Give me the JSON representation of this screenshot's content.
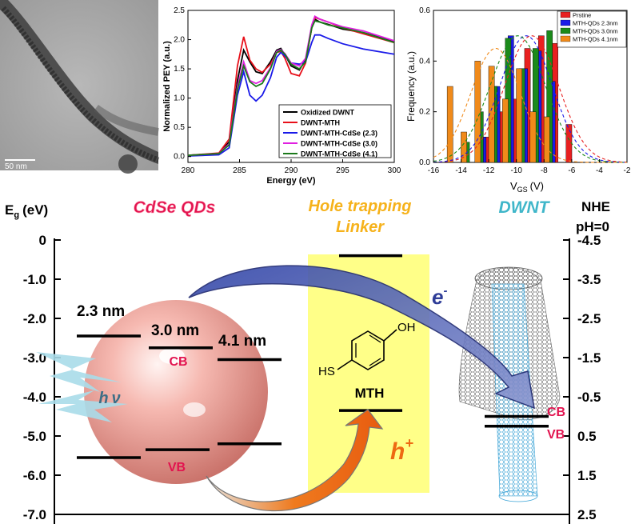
{
  "tem": {
    "scale_label": "50 nm"
  },
  "chart_data": [
    {
      "id": "pey",
      "type": "line",
      "title": "",
      "xlabel": "Energy (eV)",
      "ylabel": "Normalized PEY (a.u.)",
      "xlim": [
        280,
        300
      ],
      "ylim": [
        -0.1,
        2.5
      ],
      "x_ticks": [
        280,
        285,
        290,
        295,
        300
      ],
      "y_ticks": [
        0.0,
        0.5,
        1.0,
        1.5,
        2.0,
        2.5
      ],
      "x_tick_labels": [
        "280",
        "285",
        "290",
        "295",
        "300"
      ],
      "y_tick_labels": [
        "0.0",
        "0.5",
        "1.0",
        "1.5",
        "2.0",
        "2.5"
      ],
      "legend_position": "bottom-right",
      "series": [
        {
          "name": "Oxidized DWNT",
          "color": "#000000",
          "x": [
            280,
            283,
            284,
            284.8,
            285.4,
            286,
            286.6,
            287.2,
            288,
            288.6,
            289,
            289.4,
            290,
            290.8,
            291.4,
            292,
            292.3,
            292.8,
            293.6,
            295,
            297,
            300
          ],
          "y": [
            0.02,
            0.05,
            0.25,
            1.3,
            1.82,
            1.62,
            1.45,
            1.42,
            1.62,
            1.82,
            1.85,
            1.74,
            1.55,
            1.48,
            1.65,
            2.2,
            2.35,
            2.3,
            2.26,
            2.18,
            2.12,
            1.97
          ]
        },
        {
          "name": "DWNT-MTH",
          "color": "#e8101a",
          "x": [
            280,
            283,
            284,
            284.8,
            285.4,
            286,
            286.6,
            287.2,
            288,
            288.6,
            289,
            289.4,
            290,
            290.8,
            291.4,
            292,
            292.3,
            292.8,
            293.6,
            295,
            297,
            300
          ],
          "y": [
            0.02,
            0.06,
            0.3,
            1.55,
            2.05,
            1.65,
            1.5,
            1.44,
            1.58,
            1.78,
            1.8,
            1.68,
            1.42,
            1.38,
            1.6,
            2.2,
            2.38,
            2.35,
            2.3,
            2.2,
            2.1,
            1.95
          ]
        },
        {
          "name": "DWNT-MTH-CdSe (2.3)",
          "color": "#1a1ae8",
          "x": [
            280,
            283,
            284,
            284.8,
            285.4,
            286,
            286.6,
            287.2,
            288,
            288.6,
            289,
            289.4,
            290,
            290.8,
            291.4,
            292,
            292.3,
            292.8,
            293.6,
            295,
            297,
            300
          ],
          "y": [
            0.01,
            0.03,
            0.15,
            1.05,
            1.45,
            1.05,
            0.95,
            1.05,
            1.35,
            1.7,
            1.78,
            1.72,
            1.6,
            1.58,
            1.62,
            1.95,
            2.08,
            2.08,
            2.02,
            1.93,
            1.84,
            1.75
          ]
        },
        {
          "name": "DWNT-MTH-CdSe (3.0)",
          "color": "#e020e0",
          "x": [
            280,
            283,
            284,
            284.8,
            285.4,
            286,
            286.6,
            287.2,
            288,
            288.6,
            289,
            289.4,
            290,
            290.8,
            291.4,
            292,
            292.3,
            292.8,
            293.6,
            295,
            297,
            300
          ],
          "y": [
            0.02,
            0.05,
            0.22,
            1.2,
            1.62,
            1.3,
            1.25,
            1.3,
            1.52,
            1.8,
            1.83,
            1.76,
            1.6,
            1.55,
            1.68,
            2.25,
            2.4,
            2.35,
            2.3,
            2.22,
            2.15,
            1.98
          ]
        },
        {
          "name": "DWNT-MTH-CdSe (4.1)",
          "color": "#1b7a1b",
          "x": [
            280,
            283,
            284,
            284.8,
            285.4,
            286,
            286.6,
            287.2,
            288,
            288.6,
            289,
            289.4,
            290,
            290.8,
            291.4,
            292,
            292.3,
            292.8,
            293.6,
            295,
            297,
            300
          ],
          "y": [
            0.02,
            0.05,
            0.2,
            1.15,
            1.55,
            1.28,
            1.2,
            1.25,
            1.5,
            1.78,
            1.82,
            1.75,
            1.58,
            1.5,
            1.62,
            2.2,
            2.32,
            2.3,
            2.25,
            2.2,
            2.12,
            1.95
          ]
        }
      ]
    },
    {
      "id": "freq",
      "type": "bar",
      "title": "",
      "xlabel": "V",
      "xlabel_sub": "GS",
      "xlabel_unit": "(V)",
      "ylabel": "Frequency (a.u.)",
      "xlim": [
        -16,
        -2
      ],
      "ylim": [
        0,
        0.6
      ],
      "x_ticks": [
        -16,
        -14,
        -12,
        -10,
        -8,
        -6,
        -4,
        -2
      ],
      "y_ticks": [
        0.0,
        0.2,
        0.4,
        0.6
      ],
      "x_tick_labels": [
        "-16",
        "-14",
        "-12",
        "-10",
        "-8",
        "-6",
        "-4",
        "-2"
      ],
      "y_tick_labels": [
        "0.0",
        "0.2",
        "0.4",
        "0.6"
      ],
      "legend_position": "top-right",
      "series": [
        {
          "name": "Prstine",
          "color": "#e82020",
          "bins": [
            -12.2,
            -11.2,
            -10.2,
            -9.2,
            -8.2,
            -7.2,
            -6.2
          ],
          "values": [
            0.1,
            0.2,
            0.25,
            0.45,
            0.5,
            0.47,
            0.15
          ],
          "fit_mu": -8.9,
          "fit_sigma": 1.95,
          "fit_amp": 0.5
        },
        {
          "name": "MTH-QDs 2.3nm",
          "color": "#1a1ae8",
          "bins": [
            -12.4,
            -11.4,
            -10.4,
            -9.4,
            -8.4,
            -7.4
          ],
          "values": [
            0.1,
            0.3,
            0.5,
            0.37,
            0.44,
            0.32
          ],
          "fit_mu": -9.3,
          "fit_sigma": 1.9,
          "fit_amp": 0.5
        },
        {
          "name": "MTH-QDs 3.0nm",
          "color": "#1b8a1b",
          "bins": [
            -13.6,
            -12.6,
            -11.6,
            -10.6,
            -9.6,
            -8.6,
            -7.6
          ],
          "values": [
            0.08,
            0.2,
            0.3,
            0.49,
            0.37,
            0.45,
            0.52
          ],
          "fit_mu": -9.9,
          "fit_sigma": 2.0,
          "fit_amp": 0.5
        },
        {
          "name": "MTH-QDs 4.1nm",
          "color": "#f08a1a",
          "bins": [
            -14.8,
            -13.8,
            -12.8,
            -11.8,
            -10.8,
            -9.8,
            -8.8,
            -7.8
          ],
          "values": [
            0.3,
            0.12,
            0.4,
            0.38,
            0.25,
            0.37,
            0.2,
            0.18
          ],
          "fit_mu": -11.5,
          "fit_sigma": 1.8,
          "fit_amp": 0.45
        }
      ]
    },
    {
      "id": "energy",
      "type": "line",
      "title": "",
      "ylabel": "E",
      "ylabel_sub": "g",
      "ylabel_unit": "(eV)",
      "right_label": "NHE",
      "right_label_2": "pH=0",
      "ylim": [
        -7.0,
        0
      ],
      "y_ticks": [
        0,
        -1.0,
        -2.0,
        -3.0,
        -4.0,
        -5.0,
        -6.0,
        -7.0
      ],
      "y_tick_labels": [
        "0",
        "-1.0",
        "-2.0",
        "-3.0",
        "-4.0",
        "-5.0",
        "-6.0",
        "-7.0"
      ],
      "right_tick_labels": [
        "-4.5",
        "-3.5",
        "-2.5",
        "-1.5",
        "-0.5",
        "0.5",
        "1.5",
        "2.5"
      ],
      "headers": {
        "qds": "CdSe QDs",
        "linker_1": "Hole trapping",
        "linker_2": "Linker",
        "dwnt": "DWNT"
      },
      "levels": [
        {
          "name": "qd-2.3-cb",
          "energy": -2.45
        },
        {
          "name": "qd-3.0-cb",
          "energy": -2.75
        },
        {
          "name": "qd-4.1-cb",
          "energy": -3.05
        },
        {
          "name": "qd-2.3-vb",
          "energy": -5.55
        },
        {
          "name": "qd-3.0-vb",
          "energy": -5.35
        },
        {
          "name": "qd-4.1-vb",
          "energy": -5.2
        },
        {
          "name": "mth-top",
          "energy": -0.4
        },
        {
          "name": "mth-bottom",
          "energy": -4.35
        },
        {
          "name": "dwnt-cb",
          "energy": -4.5
        },
        {
          "name": "dwnt-vb",
          "energy": -4.75
        }
      ],
      "labels": {
        "size_23": "2.3 nm",
        "size_30": "3.0 nm",
        "size_41": "4.1 nm",
        "qd_cb": "CB",
        "qd_vb": "VB",
        "hv_h": "h",
        "hv_v": "ν",
        "mth": "MTH",
        "sh": "HS",
        "oh": "OH",
        "electron": "e",
        "electron_sup": "-",
        "hole": "h",
        "hole_sup": "+",
        "dwnt_cb": "CB",
        "dwnt_vb": "VB"
      }
    }
  ],
  "colors": {
    "accent_pink": "#e2134f",
    "accent_yellow": "#f6b21b",
    "accent_teal": "#3fb6c9",
    "arrow_blue": "#3a4a9a",
    "arrow_orange": "#ee6a12",
    "linker_box": "#ffff88"
  }
}
